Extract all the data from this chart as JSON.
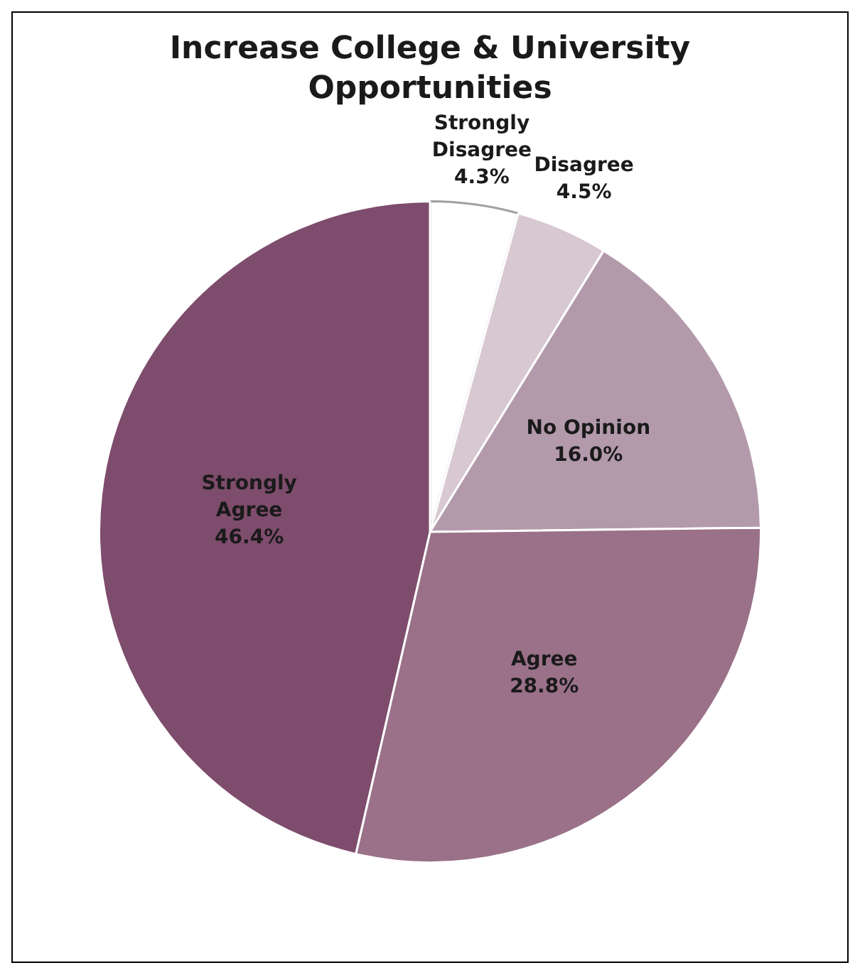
{
  "chart_data": {
    "type": "pie",
    "title": "Increase College & University Opportunities",
    "categories": [
      "Strongly Disagree",
      "Disagree",
      "No Opinion",
      "Agree",
      "Strongly Agree"
    ],
    "values": [
      4.3,
      4.5,
      16.0,
      28.8,
      46.4
    ],
    "value_labels": [
      "4.3%",
      "4.5%",
      "16.0%",
      "28.8%",
      "46.4%"
    ],
    "colors": [
      "#ffffff",
      "#d8c8d2",
      "#b39aab",
      "#9a7189",
      "#7e4c6c"
    ],
    "legend": false
  }
}
